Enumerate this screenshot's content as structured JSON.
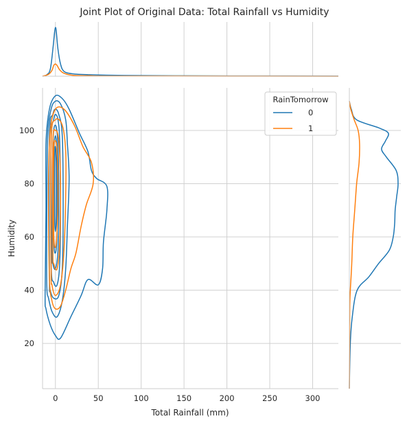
{
  "chart_data": {
    "type": "joint-kde",
    "title": "Joint Plot of Original Data: Total Rainfall vs Humidity",
    "xlabel": "Total Rainfall (mm)",
    "ylabel": "Humidity",
    "xlim": [
      -15,
      330
    ],
    "ylim": [
      3,
      116
    ],
    "x_ticks": [
      0,
      50,
      100,
      150,
      200,
      250,
      300
    ],
    "y_ticks": [
      20,
      40,
      60,
      80,
      100
    ],
    "grid": true,
    "legend": {
      "title": "RainTomorrow",
      "placement": "top-right",
      "entries": [
        {
          "label": "0",
          "color": "#1f77b4"
        },
        {
          "label": "1",
          "color": "#ff7f0e"
        }
      ]
    },
    "series": [
      {
        "name": "0",
        "color": "#1f77b4",
        "contours": [
          [
            [
              -12,
              38
            ],
            [
              -11,
              70
            ],
            [
              -11,
              95
            ],
            [
              -7,
              108
            ],
            [
              0,
              113
            ],
            [
              8,
              112
            ],
            [
              16,
              108
            ],
            [
              28,
              99
            ],
            [
              38,
              92
            ],
            [
              42,
              85
            ],
            [
              48,
              82
            ],
            [
              60,
              79
            ],
            [
              60,
              70
            ],
            [
              56,
              58
            ],
            [
              55,
              48
            ],
            [
              50,
              42
            ],
            [
              38,
              44
            ],
            [
              30,
              38
            ],
            [
              18,
              30
            ],
            [
              6,
              22
            ],
            [
              0,
              23
            ],
            [
              -6,
              27
            ],
            [
              -11,
              33
            ],
            [
              -12,
              38
            ]
          ],
          [
            [
              -10,
              42
            ],
            [
              -10,
              70
            ],
            [
              -9,
              98
            ],
            [
              -5,
              108
            ],
            [
              0,
              111
            ],
            [
              6,
              110
            ],
            [
              12,
              104
            ],
            [
              14,
              95
            ],
            [
              16,
              82
            ],
            [
              14,
              64
            ],
            [
              12,
              48
            ],
            [
              8,
              36
            ],
            [
              2,
              30
            ],
            [
              -4,
              32
            ],
            [
              -8,
              37
            ],
            [
              -10,
              42
            ]
          ],
          [
            [
              -7,
              45
            ],
            [
              -7,
              98
            ],
            [
              -3,
              106
            ],
            [
              0,
              108
            ],
            [
              4,
              106
            ],
            [
              8,
              98
            ],
            [
              9,
              72
            ],
            [
              8,
              48
            ],
            [
              4,
              38
            ],
            [
              -2,
              37
            ],
            [
              -6,
              40
            ],
            [
              -7,
              45
            ]
          ],
          [
            [
              -5,
              50
            ],
            [
              -5,
              96
            ],
            [
              -2,
              104
            ],
            [
              0,
              106
            ],
            [
              3,
              104
            ],
            [
              5,
              96
            ],
            [
              6,
              70
            ],
            [
              5,
              50
            ],
            [
              2,
              42
            ],
            [
              -2,
              43
            ],
            [
              -5,
              50
            ]
          ],
          [
            [
              -4,
              55
            ],
            [
              -3,
              94
            ],
            [
              0,
              102
            ],
            [
              3,
              94
            ],
            [
              4,
              70
            ],
            [
              3,
              55
            ],
            [
              0,
              48
            ],
            [
              -3,
              50
            ],
            [
              -4,
              55
            ]
          ],
          [
            [
              -2,
              60
            ],
            [
              -2,
              90
            ],
            [
              0,
              98
            ],
            [
              2,
              90
            ],
            [
              2,
              62
            ],
            [
              0,
              54
            ],
            [
              -2,
              60
            ]
          ],
          [
            [
              -1,
              68
            ],
            [
              -1,
              88
            ],
            [
              0,
              94
            ],
            [
              1,
              86
            ],
            [
              1,
              68
            ],
            [
              0,
              62
            ],
            [
              -1,
              68
            ]
          ]
        ],
        "marginal_x": [
          [
            -15,
            0.0
          ],
          [
            -10,
            0.03
          ],
          [
            -6,
            0.14
          ],
          [
            -3,
            0.55
          ],
          [
            -1,
            0.9
          ],
          [
            0,
            1.0
          ],
          [
            1,
            0.92
          ],
          [
            3,
            0.55
          ],
          [
            6,
            0.25
          ],
          [
            10,
            0.1
          ],
          [
            20,
            0.05
          ],
          [
            40,
            0.03
          ],
          [
            80,
            0.015
          ],
          [
            150,
            0.008
          ],
          [
            250,
            0.005
          ],
          [
            330,
            0.004
          ]
        ],
        "marginal_y": [
          [
            3,
            0.0
          ],
          [
            20,
            0.02
          ],
          [
            30,
            0.06
          ],
          [
            40,
            0.16
          ],
          [
            45,
            0.4
          ],
          [
            50,
            0.6
          ],
          [
            55,
            0.82
          ],
          [
            60,
            0.9
          ],
          [
            65,
            0.93
          ],
          [
            70,
            0.94
          ],
          [
            75,
            0.97
          ],
          [
            80,
            1.0
          ],
          [
            85,
            0.96
          ],
          [
            90,
            0.76
          ],
          [
            93,
            0.66
          ],
          [
            96,
            0.74
          ],
          [
            99,
            0.8
          ],
          [
            101,
            0.6
          ],
          [
            104,
            0.15
          ],
          [
            108,
            0.04
          ],
          [
            111,
            0.0
          ]
        ]
      },
      {
        "name": "1",
        "color": "#ff7f0e",
        "contours": [
          [
            [
              -7,
              45
            ],
            [
              -8,
              80
            ],
            [
              -6,
              100
            ],
            [
              0,
              108
            ],
            [
              10,
              108
            ],
            [
              22,
              102
            ],
            [
              32,
              94
            ],
            [
              42,
              88
            ],
            [
              44,
              80
            ],
            [
              36,
              72
            ],
            [
              30,
              64
            ],
            [
              24,
              54
            ],
            [
              18,
              48
            ],
            [
              12,
              40
            ],
            [
              6,
              34
            ],
            [
              0,
              33
            ],
            [
              -4,
              36
            ],
            [
              -7,
              45
            ]
          ],
          [
            [
              -5,
              48
            ],
            [
              -5,
              96
            ],
            [
              0,
              104
            ],
            [
              8,
              102
            ],
            [
              12,
              92
            ],
            [
              12,
              75
            ],
            [
              10,
              55
            ],
            [
              6,
              42
            ],
            [
              0,
              38
            ],
            [
              -4,
              42
            ],
            [
              -5,
              48
            ]
          ],
          [
            [
              -3,
              55
            ],
            [
              -3,
              95
            ],
            [
              0,
              100
            ],
            [
              4,
              96
            ],
            [
              6,
              78
            ],
            [
              5,
              58
            ],
            [
              2,
              48
            ],
            [
              -2,
              50
            ],
            [
              -3,
              55
            ]
          ],
          [
            [
              -2,
              62
            ],
            [
              -2,
              92
            ],
            [
              0,
              96
            ],
            [
              2,
              92
            ],
            [
              3,
              75
            ],
            [
              2,
              62
            ],
            [
              0,
              56
            ],
            [
              -2,
              62
            ]
          ]
        ],
        "marginal_x": [
          [
            -15,
            0.0
          ],
          [
            -8,
            0.04
          ],
          [
            -4,
            0.12
          ],
          [
            -2,
            0.22
          ],
          [
            0,
            0.25
          ],
          [
            2,
            0.22
          ],
          [
            5,
            0.13
          ],
          [
            10,
            0.06
          ],
          [
            20,
            0.02
          ],
          [
            40,
            0.01
          ],
          [
            80,
            0.004
          ],
          [
            330,
            0.0
          ]
        ],
        "marginal_y": [
          [
            3,
            0.0
          ],
          [
            25,
            0.005
          ],
          [
            35,
            0.01
          ],
          [
            40,
            0.02
          ],
          [
            50,
            0.05
          ],
          [
            60,
            0.07
          ],
          [
            70,
            0.11
          ],
          [
            80,
            0.15
          ],
          [
            88,
            0.2
          ],
          [
            95,
            0.21
          ],
          [
            100,
            0.18
          ],
          [
            104,
            0.1
          ],
          [
            108,
            0.03
          ],
          [
            111,
            0.0
          ]
        ]
      }
    ]
  }
}
